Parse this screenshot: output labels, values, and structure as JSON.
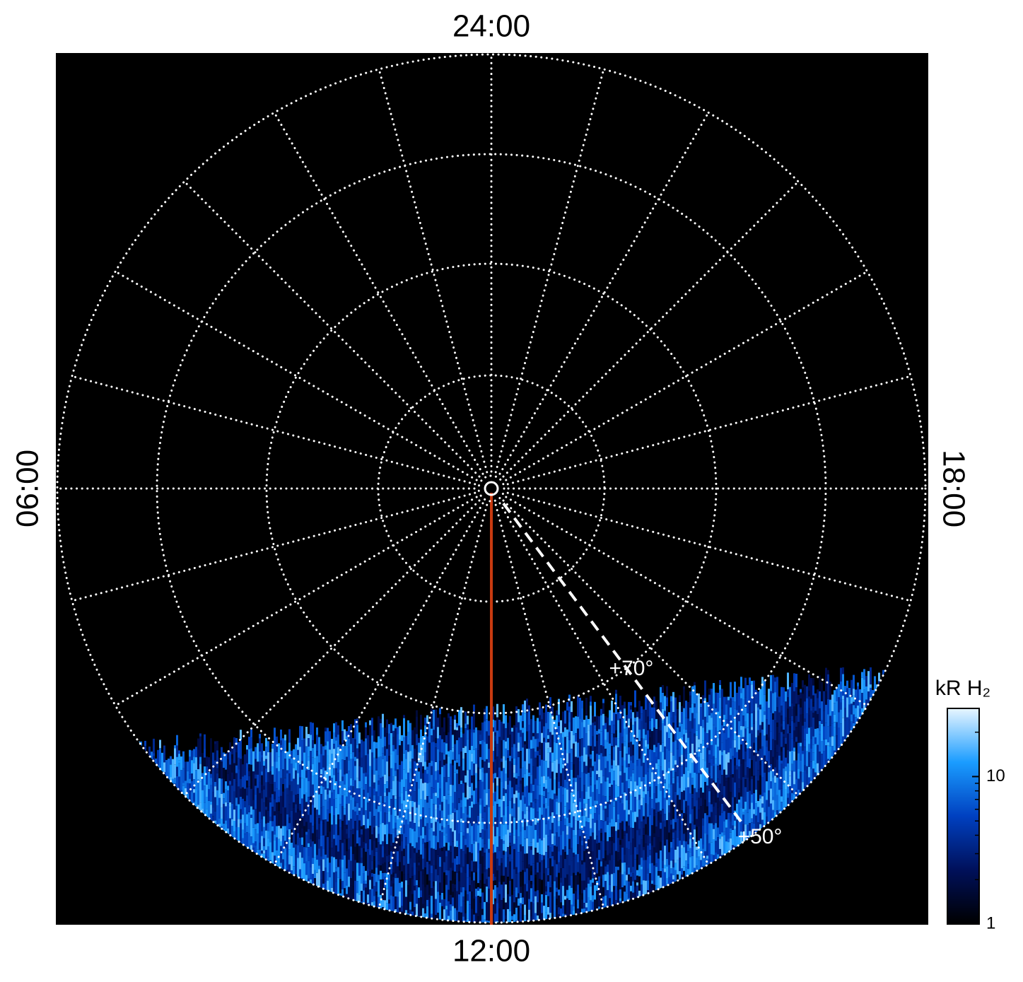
{
  "chart_data": {
    "type": "polar-image",
    "time_labels": {
      "top": "24:00",
      "bottom": "12:00",
      "left": "06:00",
      "right": "18:00"
    },
    "latitude_labels": [
      "+70°",
      "+50°"
    ],
    "colorbar": {
      "title": "kR H₂",
      "ylim": [
        1,
        29
      ],
      "yticks": [
        1,
        10
      ],
      "log": true,
      "colors": [
        "#000000",
        "#00105a",
        "#0040c0",
        "#1a9cff",
        "#e8f6ff"
      ]
    }
  }
}
